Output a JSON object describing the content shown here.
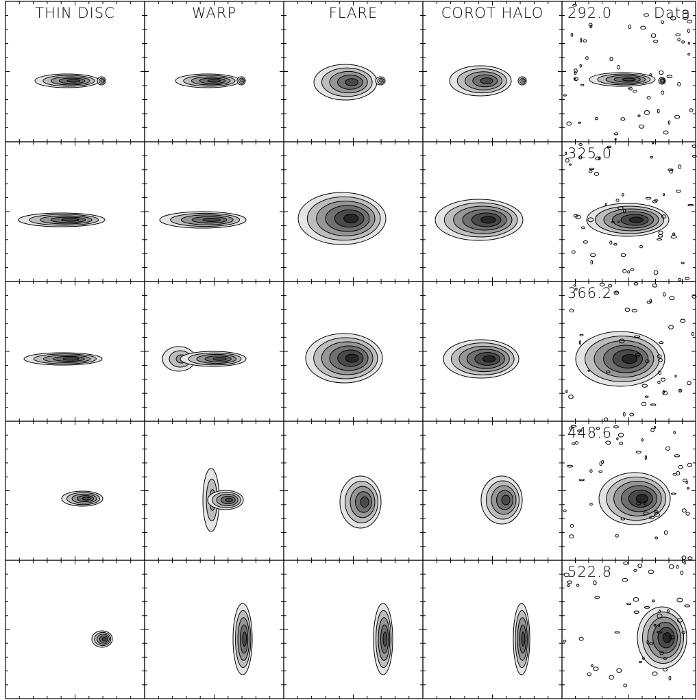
{
  "headers": [
    "THIN DISC",
    "WARP",
    "FLARE",
    "COROT HALO",
    "Data"
  ],
  "velocities": [
    "292.0",
    "325.0",
    "366.2",
    "448.6",
    "522.8"
  ]
}
